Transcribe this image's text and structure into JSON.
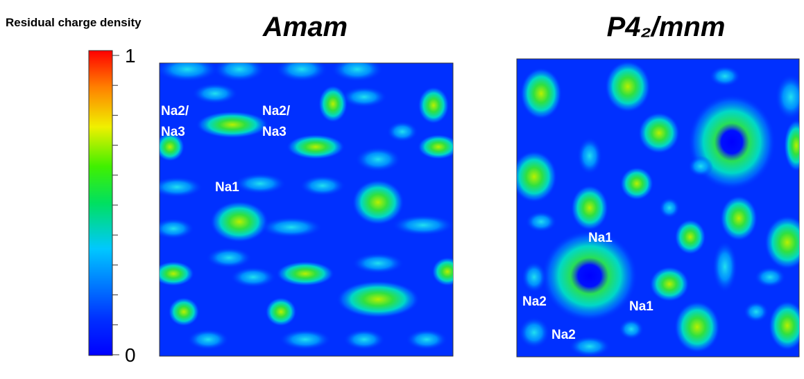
{
  "colorbar": {
    "label": "Residual charge density",
    "range": [
      0,
      1
    ],
    "ticks": [
      0,
      1
    ]
  },
  "panels": [
    {
      "title": "Amam",
      "labels": [
        "Na2/",
        "Na3",
        "Na2/",
        "Na3",
        "Na1"
      ]
    },
    {
      "title": "P4₂/mnm",
      "labels": [
        "Na1",
        "Na2",
        "Na1",
        "Na2"
      ]
    }
  ]
}
